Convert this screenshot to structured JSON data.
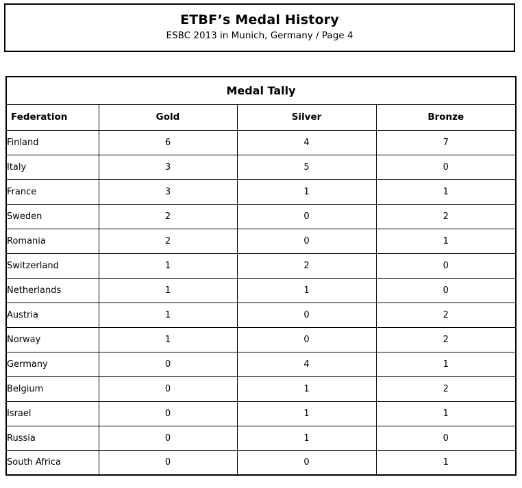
{
  "header": {
    "title": "ETBF’s Medal History",
    "subtitle": "ESBC 2013 in Munich, Germany / Page 4"
  },
  "table": {
    "caption": "Medal Tally",
    "columns": [
      "Federation",
      "Gold",
      "Silver",
      "Bronze"
    ],
    "rows": [
      {
        "federation": "Finland",
        "gold": 6,
        "silver": 4,
        "bronze": 7
      },
      {
        "federation": "Italy",
        "gold": 3,
        "silver": 5,
        "bronze": 0
      },
      {
        "federation": "France",
        "gold": 3,
        "silver": 1,
        "bronze": 1
      },
      {
        "federation": "Sweden",
        "gold": 2,
        "silver": 0,
        "bronze": 2
      },
      {
        "federation": "Romania",
        "gold": 2,
        "silver": 0,
        "bronze": 1
      },
      {
        "federation": "Switzerland",
        "gold": 1,
        "silver": 2,
        "bronze": 0
      },
      {
        "federation": "Netherlands",
        "gold": 1,
        "silver": 1,
        "bronze": 0
      },
      {
        "federation": "Austria",
        "gold": 1,
        "silver": 0,
        "bronze": 2
      },
      {
        "federation": "Norway",
        "gold": 1,
        "silver": 0,
        "bronze": 2
      },
      {
        "federation": "Germany",
        "gold": 0,
        "silver": 4,
        "bronze": 1
      },
      {
        "federation": "Belgium",
        "gold": 0,
        "silver": 1,
        "bronze": 2
      },
      {
        "federation": "Israel",
        "gold": 0,
        "silver": 1,
        "bronze": 1
      },
      {
        "federation": "Russia",
        "gold": 0,
        "silver": 1,
        "bronze": 0
      },
      {
        "federation": "South Africa",
        "gold": 0,
        "silver": 0,
        "bronze": 1
      }
    ]
  },
  "colors": {
    "border": "#000000",
    "text": "#000000",
    "background": "#ffffff"
  }
}
